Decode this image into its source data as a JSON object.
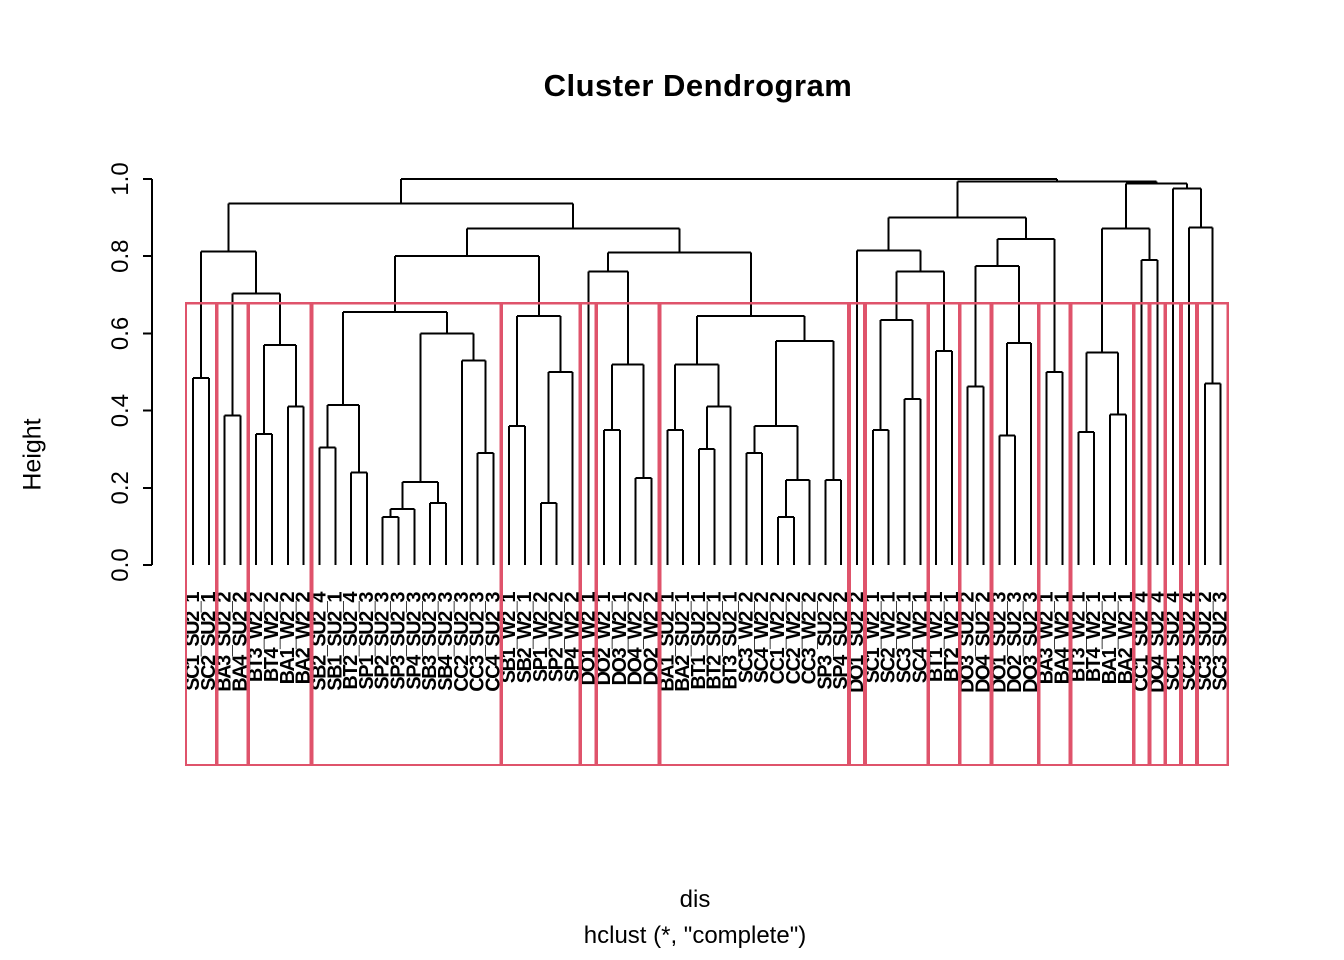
{
  "title": "Cluster Dendrogram",
  "y_axis": {
    "label": "Height",
    "ticks": [
      "0.0",
      "0.2",
      "0.4",
      "0.6",
      "0.8",
      "1.0"
    ]
  },
  "x_caption": {
    "line1": "dis",
    "line2": "hclust (*, \"complete\")"
  },
  "colors": {
    "line": "#000000",
    "cluster_box": "#DF536B",
    "background": "#FFFFFF",
    "text": "#000000"
  },
  "chart_data": {
    "type": "dendrogram",
    "title": "Cluster Dendrogram",
    "ylabel": "Height",
    "xlabel_lines": [
      "dis",
      "hclust (*, \"complete\")"
    ],
    "ylim": [
      0,
      1
    ],
    "grid": false,
    "n_leaves": 66,
    "cut_height": 0.678,
    "leaf_labels": [
      "SC1_SU2_1",
      "SC2_SU2_1",
      "BA3_SU2_2",
      "BA4_SU2_2",
      "BT3_W2_2",
      "BT4_W2_2",
      "BA1_W2_2",
      "BA2_W2_2",
      "SB2_SU2_4",
      "SB1_SU2_1",
      "BT2_SU2_4",
      "SP1_SU2_3",
      "SP2_SU2_3",
      "SP3_SU2_3",
      "SP4_SU2_3",
      "SB3_SU2_3",
      "SB4_SU2_3",
      "CC2_SU2_3",
      "CC3_SU2_3",
      "CC4_SU2_3",
      "SB1_W2_1",
      "SB2_W2_1",
      "SP1_W2_2",
      "SP2_W2_2",
      "SP4_W2_2",
      "DO1_W2_1",
      "DO2_W2_1",
      "DO3_W2_1",
      "DO4_W2_2",
      "DO2_W2_2",
      "BA1_SU2_1",
      "BA2_SU2_1",
      "BT1_SU2_1",
      "BT2_SU2_1",
      "BT3_SU2_1",
      "SC3_W2_2",
      "SC4_W2_2",
      "CC1_W2_2",
      "CC2_W2_2",
      "CC3_W2_2",
      "SP3_SU2_2",
      "SP4_SU2_2",
      "DO1_SU2_2",
      "SC1_W2_1",
      "SC2_W2_1",
      "SC3_W2_1",
      "SC4_W2_1",
      "BT1_W2_1",
      "BT2_W2_1",
      "DO3_SU2_2",
      "DO4_SU2_2",
      "DO1_SU2_3",
      "DO2_SU2_3",
      "DO3_SU2_3",
      "BA3_W2_1",
      "BA4_W2_1",
      "BT3_W2_1",
      "BT4_W2_1",
      "BA1_W2_1",
      "BA2_W2_1",
      "CC1_SU2_4",
      "DO4_SU2_4",
      "SC1_SU2_4",
      "SC2_SU2_4",
      "SC3_SU2_2",
      "SC3_SU2_3"
    ],
    "clusters": [
      [
        1,
        2
      ],
      [
        3,
        4
      ],
      [
        5,
        8
      ],
      [
        9,
        20
      ],
      [
        21,
        25
      ],
      [
        26,
        26
      ],
      [
        27,
        30
      ],
      [
        31,
        42
      ],
      [
        43,
        43
      ],
      [
        44,
        47
      ],
      [
        48,
        49
      ],
      [
        50,
        51
      ],
      [
        52,
        54
      ],
      [
        55,
        56
      ],
      [
        57,
        60
      ],
      [
        61,
        61
      ],
      [
        62,
        62
      ],
      [
        63,
        63
      ],
      [
        64,
        64
      ],
      [
        65,
        66
      ]
    ],
    "tree": {
      "h": 1.0,
      "c": [
        {
          "h": 0.937,
          "c": [
            {
              "h": 0.812,
              "c": [
                {
                  "h": 0.484,
                  "c": [
                    1,
                    2
                  ]
                },
                {
                  "h": 0.704,
                  "c": [
                    {
                      "h": 0.387,
                      "c": [
                        3,
                        4
                      ]
                    },
                    {
                      "h": 0.57,
                      "c": [
                        {
                          "h": 0.34,
                          "c": [
                            5,
                            6
                          ]
                        },
                        {
                          "h": 0.41,
                          "c": [
                            7,
                            8
                          ]
                        }
                      ]
                    }
                  ]
                }
              ]
            },
            {
              "h": 0.872,
              "c": [
                {
                  "h": 0.8,
                  "c": [
                    {
                      "h": 0.655,
                      "c": [
                        {
                          "h": 0.415,
                          "c": [
                            {
                              "h": 0.305,
                              "c": [
                                9,
                                10
                              ]
                            },
                            {
                              "h": 0.24,
                              "c": [
                                11,
                                12
                              ]
                            }
                          ]
                        },
                        {
                          "h": 0.6,
                          "c": [
                            {
                              "h": 0.215,
                              "c": [
                                {
                                  "h": 0.145,
                                  "c": [
                                    {
                                      "h": 0.125,
                                      "c": [
                                        13,
                                        14
                                      ]
                                    },
                                    15
                                  ]
                                },
                                {
                                  "h": 0.16,
                                  "c": [
                                    16,
                                    17
                                  ]
                                }
                              ]
                            },
                            {
                              "h": 0.53,
                              "c": [
                                18,
                                {
                                  "h": 0.29,
                                  "c": [
                                    19,
                                    20
                                  ]
                                }
                              ]
                            }
                          ]
                        }
                      ]
                    },
                    {
                      "h": 0.645,
                      "c": [
                        {
                          "h": 0.36,
                          "c": [
                            21,
                            22
                          ]
                        },
                        {
                          "h": 0.5,
                          "c": [
                            {
                              "h": 0.16,
                              "c": [
                                23,
                                24
                              ]
                            },
                            25
                          ]
                        }
                      ]
                    }
                  ]
                },
                {
                  "h": 0.81,
                  "c": [
                    {
                      "h": 0.76,
                      "c": [
                        26,
                        {
                          "h": 0.52,
                          "c": [
                            {
                              "h": 0.35,
                              "c": [
                                27,
                                28
                              ]
                            },
                            {
                              "h": 0.225,
                              "c": [
                                29,
                                30
                              ]
                            }
                          ]
                        }
                      ]
                    },
                    {
                      "h": 0.645,
                      "c": [
                        {
                          "h": 0.52,
                          "c": [
                            {
                              "h": 0.35,
                              "c": [
                                31,
                                32
                              ]
                            },
                            {
                              "h": 0.41,
                              "c": [
                                {
                                  "h": 0.3,
                                  "c": [
                                    33,
                                    34
                                  ]
                                },
                                35
                              ]
                            }
                          ]
                        },
                        {
                          "h": 0.58,
                          "c": [
                            {
                              "h": 0.36,
                              "c": [
                                {
                                  "h": 0.29,
                                  "c": [
                                    36,
                                    37
                                  ]
                                },
                                {
                                  "h": 0.22,
                                  "c": [
                                    {
                                      "h": 0.125,
                                      "c": [
                                        38,
                                        39
                                      ]
                                    },
                                    40
                                  ]
                                }
                              ]
                            },
                            {
                              "h": 0.22,
                              "c": [
                                41,
                                42
                              ]
                            }
                          ]
                        }
                      ]
                    }
                  ]
                }
              ]
            }
          ]
        },
        {
          "h": 0.993,
          "c": [
            {
              "h": 0.9,
              "c": [
                {
                  "h": 0.815,
                  "c": [
                    43,
                    {
                      "h": 0.76,
                      "c": [
                        {
                          "h": 0.635,
                          "c": [
                            {
                              "h": 0.35,
                              "c": [
                                44,
                                45
                              ]
                            },
                            {
                              "h": 0.43,
                              "c": [
                                46,
                                47
                              ]
                            }
                          ]
                        },
                        {
                          "h": 0.555,
                          "c": [
                            48,
                            49
                          ]
                        }
                      ]
                    }
                  ]
                },
                {
                  "h": 0.845,
                  "c": [
                    {
                      "h": 0.775,
                      "c": [
                        {
                          "h": 0.462,
                          "c": [
                            50,
                            51
                          ]
                        },
                        {
                          "h": 0.575,
                          "c": [
                            {
                              "h": 0.335,
                              "c": [
                                52,
                                53
                              ]
                            },
                            54
                          ]
                        }
                      ]
                    },
                    {
                      "h": 0.5,
                      "c": [
                        55,
                        56
                      ]
                    }
                  ]
                }
              ]
            },
            {
              "h": 0.988,
              "c": [
                {
                  "h": 0.872,
                  "c": [
                    {
                      "h": 0.55,
                      "c": [
                        {
                          "h": 0.345,
                          "c": [
                            57,
                            58
                          ]
                        },
                        {
                          "h": 0.39,
                          "c": [
                            59,
                            60
                          ]
                        }
                      ]
                    },
                    {
                      "h": 0.79,
                      "c": [
                        61,
                        62
                      ]
                    }
                  ]
                },
                {
                  "h": 0.975,
                  "c": [
                    63,
                    {
                      "h": 0.875,
                      "c": [
                        64,
                        {
                          "h": 0.47,
                          "c": [
                            65,
                            66
                          ]
                        }
                      ]
                    }
                  ]
                }
              ]
            }
          ]
        }
      ]
    }
  }
}
